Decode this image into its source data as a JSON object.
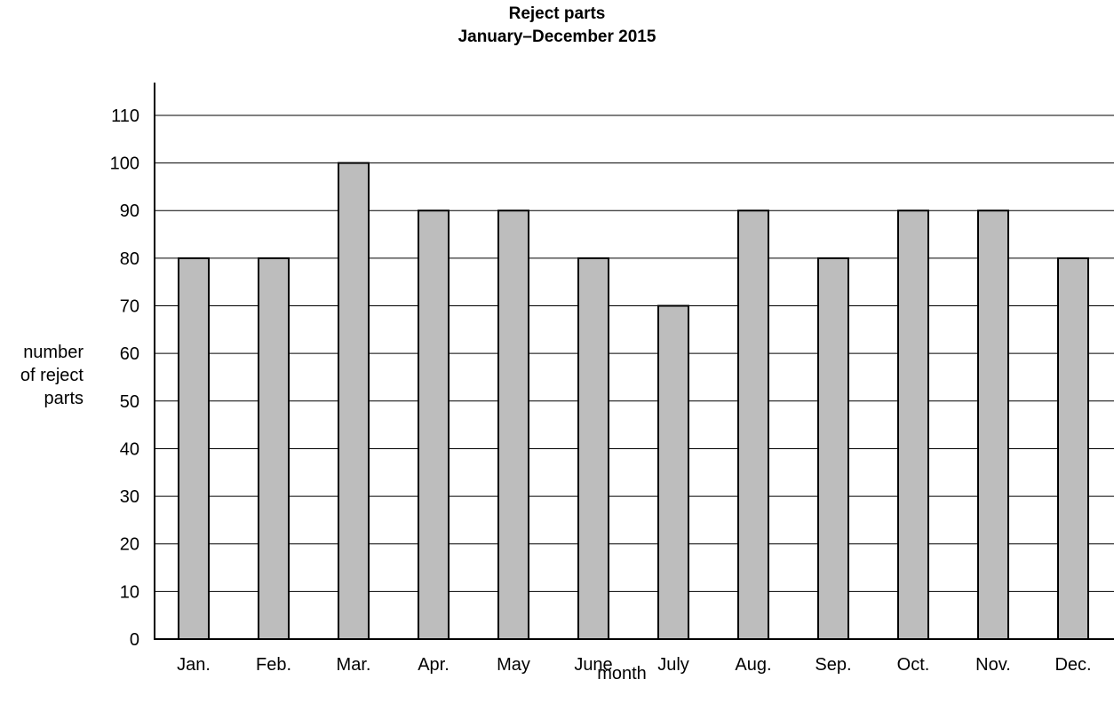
{
  "chart_data": {
    "type": "bar",
    "title": "Reject parts",
    "subtitle": "January–December 2015",
    "xlabel": "month",
    "ylabel_lines": [
      "number",
      "of reject",
      "parts"
    ],
    "categories": [
      "Jan.",
      "Feb.",
      "Mar.",
      "Apr.",
      "May",
      "June",
      "July",
      "Aug.",
      "Sep.",
      "Oct.",
      "Nov.",
      "Dec."
    ],
    "values": [
      80,
      80,
      100,
      90,
      90,
      80,
      70,
      90,
      80,
      90,
      90,
      80
    ],
    "y_ticks": [
      "0",
      "10",
      "20",
      "30",
      "40",
      "50",
      "60",
      "70",
      "80",
      "90",
      "100",
      "110"
    ],
    "ylim": [
      0,
      115
    ],
    "grid": true,
    "legend": "none",
    "colors": {
      "bar_fill": "#bdbdbd",
      "bar_stroke": "#000000",
      "grid": "#000000"
    }
  }
}
